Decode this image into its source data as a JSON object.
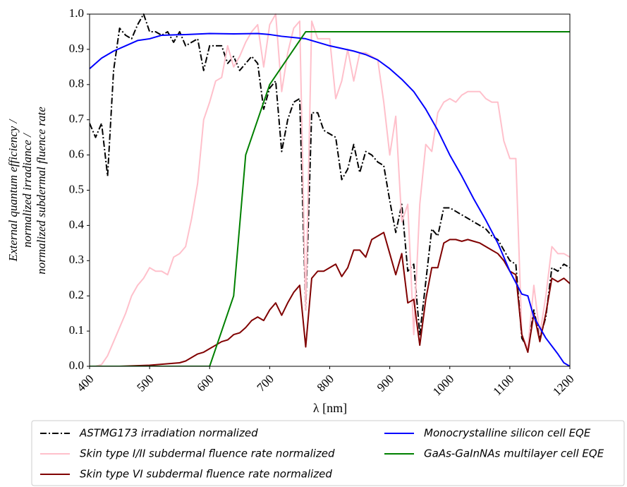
{
  "chart_data": {
    "type": "line",
    "xlabel": "λ [nm]",
    "ylabel": [
      "External quantum efficiency /",
      "normalized irradiance /",
      "normalized subdermal fluence rate"
    ],
    "xlim": [
      400,
      1200
    ],
    "ylim": [
      0,
      1
    ],
    "xticks": [
      400,
      500,
      600,
      700,
      800,
      900,
      1000,
      1100,
      1200
    ],
    "yticks": [
      {
        "value": 0,
        "label": "0.0"
      },
      0.1,
      0.2,
      0.3,
      0.4,
      0.5,
      0.6,
      0.7,
      0.8,
      0.9,
      {
        "value": 1,
        "label": "1.0"
      }
    ],
    "legend": "below",
    "series": [
      {
        "name": "ASTMG173 irradiation normalized",
        "color": "#000000",
        "linestyle": "dashdot",
        "x": [
          400,
          410,
          420,
          430,
          440,
          450,
          460,
          470,
          480,
          490,
          500,
          510,
          520,
          530,
          540,
          550,
          560,
          570,
          580,
          590,
          600,
          610,
          620,
          630,
          640,
          650,
          660,
          670,
          680,
          690,
          700,
          710,
          720,
          730,
          740,
          750,
          760,
          770,
          780,
          790,
          800,
          810,
          820,
          830,
          840,
          850,
          860,
          870,
          880,
          890,
          900,
          910,
          920,
          930,
          940,
          950,
          960,
          970,
          980,
          990,
          1000,
          1010,
          1020,
          1030,
          1040,
          1050,
          1060,
          1070,
          1080,
          1090,
          1100,
          1110,
          1120,
          1130,
          1140,
          1150,
          1160,
          1170,
          1180,
          1190,
          1200
        ],
        "values": [
          0.69,
          0.65,
          0.69,
          0.54,
          0.84,
          0.96,
          0.94,
          0.93,
          0.97,
          1.0,
          0.95,
          0.95,
          0.94,
          0.95,
          0.92,
          0.95,
          0.91,
          0.92,
          0.93,
          0.84,
          0.91,
          0.91,
          0.91,
          0.86,
          0.88,
          0.84,
          0.86,
          0.88,
          0.86,
          0.73,
          0.79,
          0.81,
          0.61,
          0.7,
          0.75,
          0.76,
          0.16,
          0.72,
          0.72,
          0.67,
          0.66,
          0.65,
          0.53,
          0.56,
          0.63,
          0.55,
          0.61,
          0.6,
          0.58,
          0.57,
          0.47,
          0.38,
          0.46,
          0.27,
          0.29,
          0.09,
          0.24,
          0.39,
          0.37,
          0.45,
          0.45,
          0.44,
          0.43,
          0.42,
          0.41,
          0.4,
          0.39,
          0.37,
          0.36,
          0.33,
          0.3,
          0.29,
          0.08,
          0.05,
          0.16,
          0.08,
          0.14,
          0.28,
          0.27,
          0.29,
          0.28
        ]
      },
      {
        "name": "Skin type I/II subdermal fluence rate normalized",
        "color": "#ffc0cb",
        "linestyle": "solid",
        "x": [
          400,
          410,
          420,
          430,
          440,
          450,
          460,
          470,
          480,
          490,
          500,
          510,
          520,
          530,
          540,
          550,
          560,
          570,
          580,
          590,
          600,
          610,
          620,
          630,
          640,
          650,
          660,
          670,
          680,
          690,
          700,
          710,
          720,
          730,
          740,
          750,
          760,
          770,
          780,
          790,
          800,
          810,
          820,
          830,
          840,
          850,
          860,
          870,
          880,
          890,
          900,
          910,
          920,
          930,
          940,
          950,
          960,
          970,
          980,
          990,
          1000,
          1010,
          1020,
          1030,
          1040,
          1050,
          1060,
          1070,
          1080,
          1090,
          1100,
          1110,
          1120,
          1130,
          1140,
          1150,
          1160,
          1170,
          1180,
          1190,
          1200
        ],
        "values": [
          0,
          0,
          0.005,
          0.03,
          0.07,
          0.11,
          0.15,
          0.2,
          0.23,
          0.25,
          0.28,
          0.27,
          0.27,
          0.26,
          0.31,
          0.32,
          0.34,
          0.42,
          0.52,
          0.7,
          0.75,
          0.81,
          0.82,
          0.91,
          0.85,
          0.88,
          0.92,
          0.95,
          0.97,
          0.85,
          0.97,
          1.0,
          0.78,
          0.89,
          0.96,
          0.98,
          0.16,
          0.98,
          0.93,
          0.93,
          0.93,
          0.76,
          0.81,
          0.9,
          0.81,
          0.89,
          0.89,
          0.88,
          0.87,
          0.75,
          0.6,
          0.71,
          0.41,
          0.46,
          0.09,
          0.46,
          0.63,
          0.61,
          0.72,
          0.75,
          0.76,
          0.75,
          0.77,
          0.78,
          0.78,
          0.78,
          0.76,
          0.75,
          0.75,
          0.64,
          0.59,
          0.59,
          0.09,
          0.05,
          0.23,
          0.09,
          0.2,
          0.34,
          0.32,
          0.32,
          0.31
        ]
      },
      {
        "name": "Skin type VI subdermal fluence rate normalized",
        "color": "#800000",
        "linestyle": "solid",
        "x": [
          400,
          450,
          500,
          550,
          560,
          570,
          580,
          590,
          600,
          610,
          620,
          630,
          640,
          650,
          660,
          670,
          680,
          690,
          700,
          710,
          720,
          730,
          740,
          750,
          760,
          770,
          780,
          790,
          800,
          810,
          820,
          830,
          840,
          850,
          860,
          870,
          880,
          890,
          900,
          910,
          920,
          930,
          940,
          950,
          960,
          970,
          980,
          990,
          1000,
          1010,
          1020,
          1030,
          1040,
          1050,
          1060,
          1070,
          1080,
          1090,
          1100,
          1110,
          1120,
          1130,
          1140,
          1150,
          1160,
          1170,
          1180,
          1190,
          1200
        ],
        "values": [
          0,
          0,
          0.003,
          0.01,
          0.015,
          0.025,
          0.035,
          0.04,
          0.05,
          0.06,
          0.07,
          0.075,
          0.09,
          0.095,
          0.11,
          0.13,
          0.14,
          0.13,
          0.16,
          0.18,
          0.145,
          0.18,
          0.21,
          0.23,
          0.055,
          0.25,
          0.27,
          0.27,
          0.28,
          0.29,
          0.255,
          0.28,
          0.33,
          0.33,
          0.31,
          0.36,
          0.37,
          0.38,
          0.32,
          0.26,
          0.32,
          0.18,
          0.19,
          0.06,
          0.19,
          0.28,
          0.28,
          0.35,
          0.36,
          0.36,
          0.355,
          0.36,
          0.355,
          0.35,
          0.34,
          0.33,
          0.32,
          0.3,
          0.27,
          0.26,
          0.09,
          0.04,
          0.15,
          0.07,
          0.15,
          0.25,
          0.24,
          0.25,
          0.235
        ]
      },
      {
        "name": "Monocrystalline silicon cell EQE",
        "color": "#0000ff",
        "linestyle": "solid",
        "x": [
          400,
          420,
          440,
          460,
          480,
          500,
          520,
          560,
          600,
          640,
          680,
          700,
          720,
          760,
          800,
          840,
          860,
          880,
          900,
          920,
          940,
          960,
          980,
          1000,
          1020,
          1040,
          1060,
          1080,
          1100,
          1120,
          1130,
          1140,
          1160,
          1180,
          1190,
          1200
        ],
        "values": [
          0.845,
          0.875,
          0.895,
          0.91,
          0.925,
          0.93,
          0.94,
          0.942,
          0.945,
          0.944,
          0.945,
          0.942,
          0.937,
          0.93,
          0.91,
          0.895,
          0.885,
          0.87,
          0.845,
          0.815,
          0.78,
          0.73,
          0.67,
          0.6,
          0.54,
          0.475,
          0.415,
          0.35,
          0.27,
          0.205,
          0.2,
          0.14,
          0.08,
          0.035,
          0.01,
          0
        ]
      },
      {
        "name": "GaAs-GaInNAs multilayer cell EQE",
        "color": "#008000",
        "linestyle": "solid",
        "x": [
          400,
          600,
          640,
          660,
          700,
          760,
          1200
        ],
        "values": [
          0,
          0,
          0.2,
          0.6,
          0.8,
          0.95,
          0.95
        ]
      }
    ]
  }
}
